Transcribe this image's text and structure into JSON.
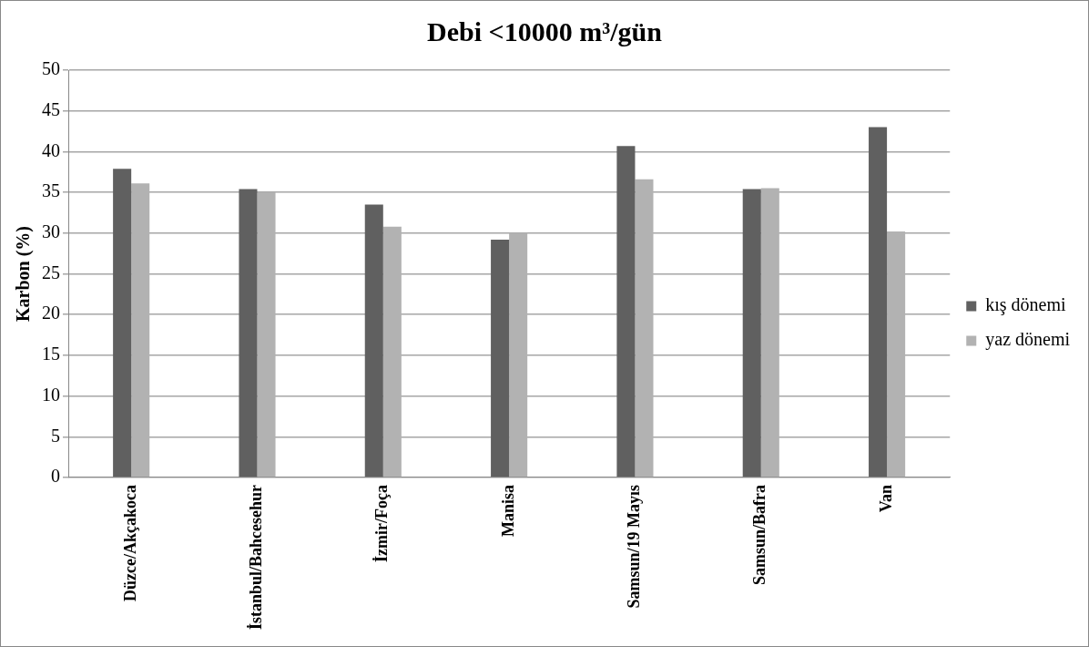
{
  "chart_data": {
    "type": "bar",
    "title": "Debi <10000 m³/gün",
    "ylabel": "Karbon (%)",
    "categories": [
      "Düzce/Akçakoca",
      "İstanbul/Bahcesehur",
      "İzmir/Foça",
      "Manisa",
      "Samsun/19 Mayıs",
      "Samsun/Bafra",
      "Van"
    ],
    "series": [
      {
        "name": "kış dönemi",
        "color": "#606060",
        "values": [
          37.9,
          35.4,
          33.5,
          29.2,
          40.7,
          35.4,
          43.0
        ]
      },
      {
        "name": "yaz dönemi",
        "color": "#b2b2b2",
        "values": [
          36.1,
          35.0,
          30.8,
          30.0,
          36.6,
          35.5,
          30.2
        ]
      }
    ],
    "ylim": [
      0,
      50
    ],
    "yticks": [
      0,
      5,
      10,
      15,
      20,
      25,
      30,
      35,
      40,
      45,
      50
    ],
    "grid": "y",
    "legend": "right"
  }
}
